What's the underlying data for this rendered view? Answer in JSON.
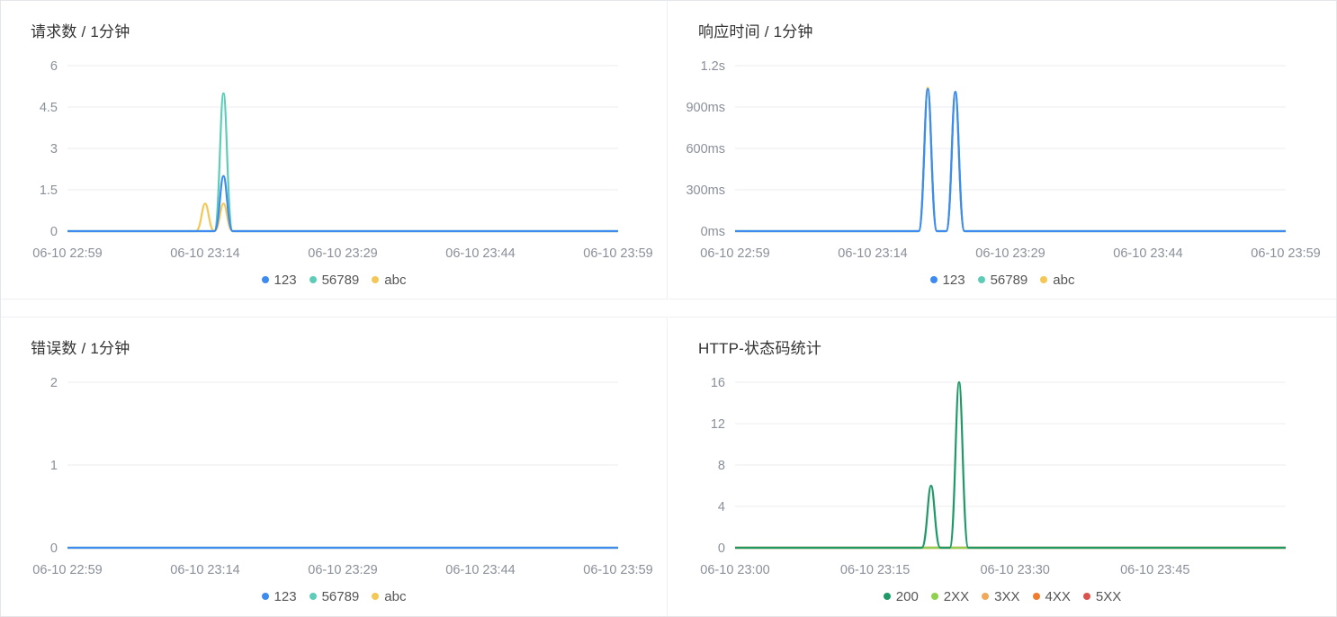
{
  "chart_data": [
    {
      "type": "line",
      "title": "请求数 / 1分钟",
      "x": [
        "06-10 22:59",
        "06-10 23:14",
        "06-10 23:29",
        "06-10 23:44",
        "06-10 23:59"
      ],
      "x_range_minutes": [
        0,
        60
      ],
      "ylim": [
        0,
        6
      ],
      "yticks": [
        "0",
        "1.5",
        "3",
        "4.5",
        "6"
      ],
      "grid": true,
      "legend": "bottom",
      "series": [
        {
          "name": "123",
          "color": "#3d8bf0",
          "peaks": [
            [
              15,
              0
            ],
            [
              17,
              2
            ]
          ]
        },
        {
          "name": "56789",
          "color": "#5ecdb8",
          "peaks": [
            [
              15,
              0
            ],
            [
              17,
              5
            ]
          ]
        },
        {
          "name": "abc",
          "color": "#f4c857",
          "peaks": [
            [
              15,
              1
            ],
            [
              17,
              1
            ]
          ]
        }
      ]
    },
    {
      "type": "line",
      "title": "响应时间 / 1分钟",
      "x": [
        "06-10 22:59",
        "06-10 23:14",
        "06-10 23:29",
        "06-10 23:44",
        "06-10 23:59"
      ],
      "x_range_minutes": [
        0,
        60
      ],
      "ylim": [
        0,
        1200
      ],
      "yticks": [
        "0ms",
        "300ms",
        "600ms",
        "900ms",
        "1.2s"
      ],
      "grid": true,
      "legend": "bottom",
      "series": [
        {
          "name": "123",
          "color": "#3d8bf0",
          "peaks": [
            [
              21,
              1030
            ],
            [
              24,
              1010
            ]
          ]
        },
        {
          "name": "56789",
          "color": "#5ecdb8",
          "peaks": [
            [
              21,
              1030
            ],
            [
              24,
              1010
            ]
          ]
        },
        {
          "name": "abc",
          "color": "#f4c857",
          "peaks": [
            [
              21,
              1040
            ],
            [
              24,
              1005
            ]
          ]
        }
      ]
    },
    {
      "type": "line",
      "title": "错误数 / 1分钟",
      "x": [
        "06-10 22:59",
        "06-10 23:14",
        "06-10 23:29",
        "06-10 23:44",
        "06-10 23:59"
      ],
      "x_range_minutes": [
        0,
        60
      ],
      "ylim": [
        0,
        2
      ],
      "yticks": [
        "0",
        "1",
        "2"
      ],
      "grid": true,
      "legend": "bottom",
      "series": [
        {
          "name": "123",
          "color": "#3d8bf0",
          "peaks": []
        },
        {
          "name": "56789",
          "color": "#5ecdb8",
          "peaks": []
        },
        {
          "name": "abc",
          "color": "#f4c857",
          "peaks": []
        }
      ]
    },
    {
      "type": "line",
      "title": "HTTP-状态码统计",
      "x": [
        "06-10 23:00",
        "06-10 23:15",
        "06-10 23:30",
        "06-10 23:45"
      ],
      "x_range_minutes": [
        0,
        59
      ],
      "ylim": [
        0,
        16
      ],
      "yticks": [
        "0",
        "4",
        "8",
        "12",
        "16"
      ],
      "grid": true,
      "legend": "bottom",
      "series": [
        {
          "name": "200",
          "color": "#1f9a67",
          "peaks": [
            [
              21,
              6
            ],
            [
              24,
              16
            ]
          ]
        },
        {
          "name": "2XX",
          "color": "#8fd14f",
          "peaks": []
        },
        {
          "name": "3XX",
          "color": "#f0a85a",
          "peaks": []
        },
        {
          "name": "4XX",
          "color": "#f07a2e",
          "peaks": []
        },
        {
          "name": "5XX",
          "color": "#d9534f",
          "peaks": []
        }
      ]
    }
  ]
}
